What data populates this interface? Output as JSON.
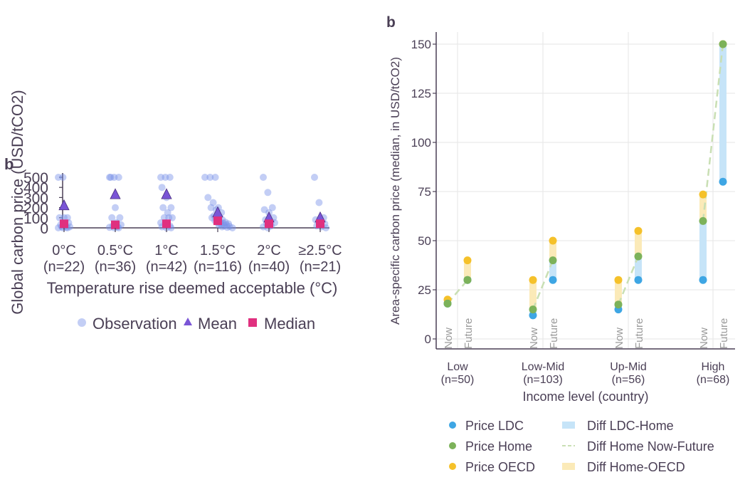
{
  "chart_data": [
    {
      "type": "scatter",
      "panel_label": "b",
      "xlabel": "Temperature rise deemed acceptable (°C)",
      "ylabel": "Global carbon price (USD/tCO2)",
      "ylim": [
        0,
        500
      ],
      "yticks": [
        0,
        100,
        200,
        300,
        400,
        500
      ],
      "categories": [
        "0°C",
        "0.5°C",
        "1°C",
        "1.5°C",
        "2°C",
        "≥2.5°C"
      ],
      "category_counts": [
        "(n=22)",
        "(n=36)",
        "(n=42)",
        "(n=116)",
        "(n=40)",
        "(n=21)"
      ],
      "legend": [
        "Observation",
        "Mean",
        "Median"
      ],
      "legend_position": "bottom",
      "colors": {
        "observation": "#7b93e8",
        "mean": "#7a55d6",
        "median": "#e0307f",
        "axis": "#4a3f55"
      },
      "observations": [
        [
          500,
          500,
          100,
          100,
          100,
          50,
          30,
          20,
          10,
          10,
          5,
          0,
          0,
          0
        ],
        [
          500,
          500,
          500,
          500,
          200,
          100,
          100,
          50,
          30,
          20,
          10,
          5,
          0,
          0
        ],
        [
          500,
          500,
          500,
          400,
          300,
          200,
          200,
          150,
          100,
          100,
          100,
          50,
          50,
          20,
          10,
          0,
          0
        ],
        [
          500,
          500,
          500,
          300,
          250,
          200,
          200,
          180,
          150,
          120,
          110,
          100,
          90,
          80,
          70,
          60,
          55,
          50,
          45,
          40,
          35,
          30,
          25,
          20,
          15,
          10,
          5,
          0
        ],
        [
          500,
          350,
          200,
          180,
          150,
          100,
          80,
          60,
          50,
          40,
          20,
          10,
          0
        ],
        [
          500,
          250,
          100,
          80,
          60,
          40,
          20,
          10,
          0
        ]
      ],
      "means": [
        220,
        330,
        330,
        150,
        100,
        100
      ],
      "medians": [
        40,
        30,
        40,
        70,
        40,
        40
      ]
    },
    {
      "type": "dot-range",
      "panel_label": "b",
      "xlabel": "Income level (country)",
      "ylabel": "Area-specific carbon price (median, in USD/tCO2)",
      "ylim": [
        0,
        150
      ],
      "yticks": [
        0,
        25,
        50,
        75,
        100,
        125,
        150
      ],
      "categories": [
        "Low",
        "Low-Mid",
        "Up-Mid",
        "High"
      ],
      "category_counts": [
        "(n=50)",
        "(n=103)",
        "(n=56)",
        "(n=68)"
      ],
      "sub_labels": [
        "Now",
        "Future"
      ],
      "groups": [
        {
          "now": {
            "ldc": 18,
            "home": 18,
            "oecd": 20
          },
          "future": {
            "ldc": 30,
            "home": 30,
            "oecd": 40
          }
        },
        {
          "now": {
            "ldc": 12,
            "home": 15,
            "oecd": 30
          },
          "future": {
            "ldc": 30,
            "home": 40,
            "oecd": 50
          }
        },
        {
          "now": {
            "ldc": 15,
            "home": 17.5,
            "oecd": 30
          },
          "future": {
            "ldc": 30,
            "home": 42,
            "oecd": 55
          }
        },
        {
          "now": {
            "ldc": 30,
            "home": 60,
            "oecd": 73.5
          },
          "future": {
            "ldc": 80,
            "home": 150,
            "oecd": 150
          }
        }
      ],
      "legend": [
        "Price LDC",
        "Price Home",
        "Price OECD",
        "Diff LDC-Home",
        "Diff Home Now-Future",
        "Diff Home-OECD"
      ],
      "legend_position": "bottom",
      "colors": {
        "ldc": "#3ea6e4",
        "home": "#7cb25a",
        "oecd": "#f5c12a",
        "diff_ldc": "#c6e4f8",
        "diff_home": "#c9dfb4",
        "diff_oecd": "#fbeab8",
        "grid": "#e6e6e6",
        "axis": "#4a3f55",
        "sublabel": "#9a9a9a"
      }
    }
  ]
}
